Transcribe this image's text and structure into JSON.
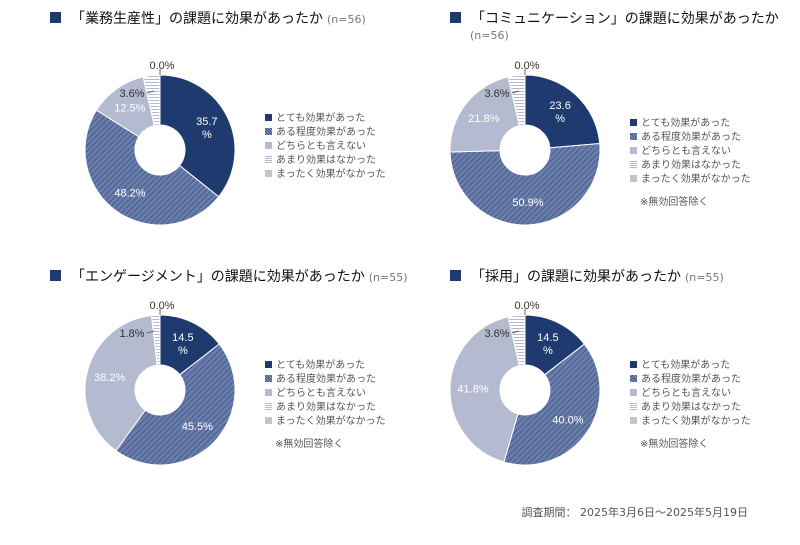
{
  "legend_labels": [
    "とても効果があった",
    "ある程度効果があった",
    "どちらとも言えない",
    "あまり効果はなかった",
    "まったく効果がなかった"
  ],
  "colors": {
    "very": "#1f3a6e",
    "somewhat": "#5b6f9f",
    "neutral": "#b4bacf",
    "not_much": "#e4e6ee",
    "none": "#c4c4c4"
  },
  "note": "※無効回答除く",
  "footer": "調査期間： 2025年3月6日～2025年5月19日",
  "chart_data": [
    {
      "type": "pie",
      "title": "「業務生産性」の課題に効果があったか",
      "n": "(n=56)",
      "values": [
        35.7,
        48.2,
        12.5,
        3.6,
        0.0
      ],
      "labels": [
        "35.7\n%",
        "48.2%",
        "12.5%",
        "3.6%",
        "0.0%"
      ]
    },
    {
      "type": "pie",
      "title": "「コミュニケーション」の課題に効果があったか",
      "n": "(n=56)",
      "values": [
        23.6,
        50.9,
        21.8,
        3.6,
        0.0
      ],
      "labels": [
        "23.6\n%",
        "50.9%",
        "21.8%",
        "3.6%",
        "0.0%"
      ]
    },
    {
      "type": "pie",
      "title": "「エンゲージメント」の課題に効果があったか",
      "n": "(n=55)",
      "values": [
        14.5,
        45.5,
        38.2,
        1.8,
        0.0
      ],
      "labels": [
        "14.5\n%",
        "45.5%",
        "38.2%",
        "1.8%",
        "0.0%"
      ]
    },
    {
      "type": "pie",
      "title": "「採用」の課題に効果があったか",
      "n": "(n=55)",
      "values": [
        14.5,
        40.0,
        41.8,
        3.6,
        0.0
      ],
      "labels": [
        "14.5\n%",
        "40.0%",
        "41.8%",
        "3.6%",
        "0.0%"
      ]
    }
  ]
}
